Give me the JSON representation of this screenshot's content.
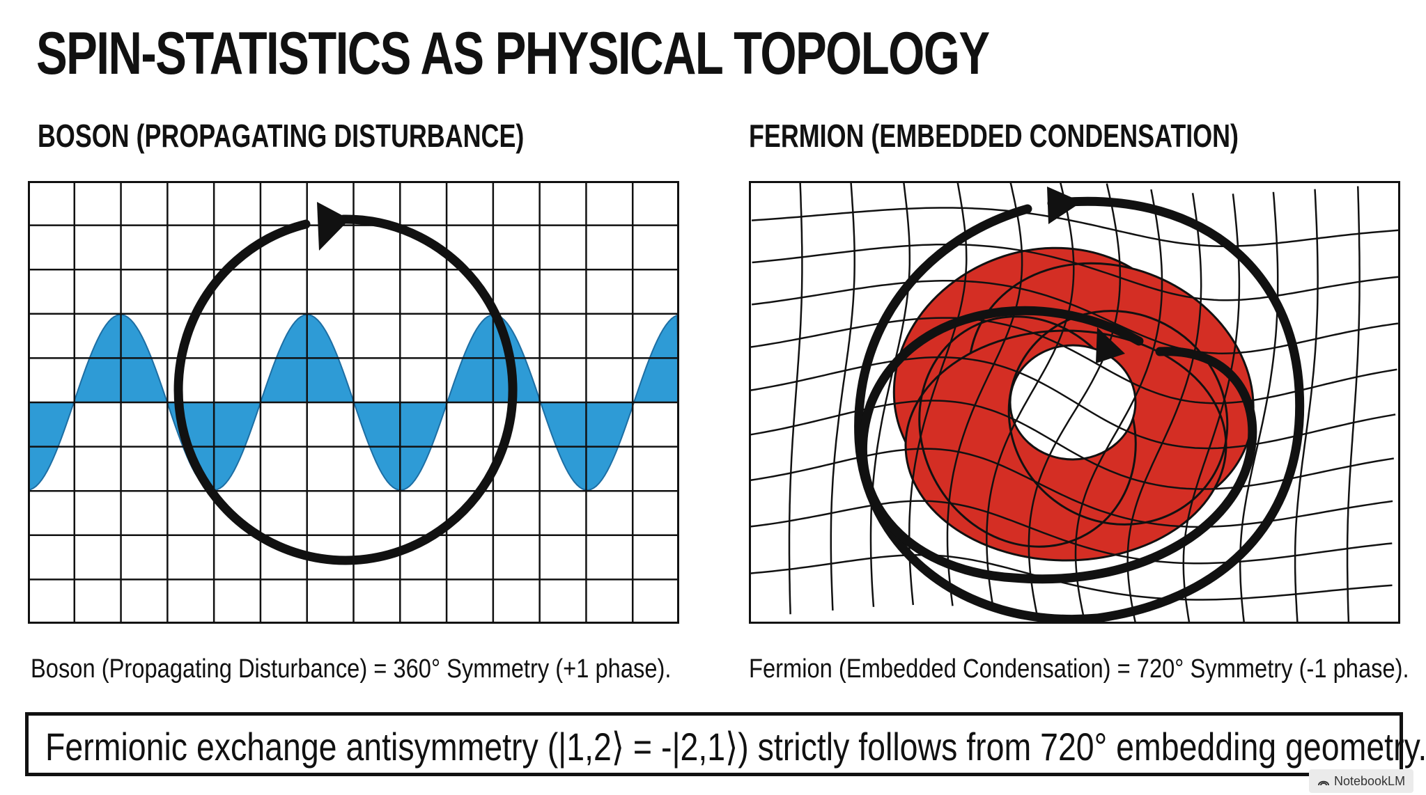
{
  "title": "SPIN-STATISTICS AS PHYSICAL TOPOLOGY",
  "left_panel": {
    "heading": "BOSON (PROPAGATING DISTURBANCE)",
    "caption": "Boson (Propagating Disturbance) = 360° Symmetry (+1 phase).",
    "wave_color": "#2e9bd6"
  },
  "right_panel": {
    "heading": "FERMION (EMBEDDED CONDENSATION)",
    "caption": "Fermion (Embedded Condensation) = 720° Symmetry (-1 phase).",
    "knot_color": "#d42e24"
  },
  "conclusion": "Fermionic exchange antisymmetry (|1,2⟩ = -|2,1⟩) strictly follows from 720° embedding geometry.",
  "badge": {
    "icon": "notebooklm-icon",
    "label": "NotebookLM"
  }
}
